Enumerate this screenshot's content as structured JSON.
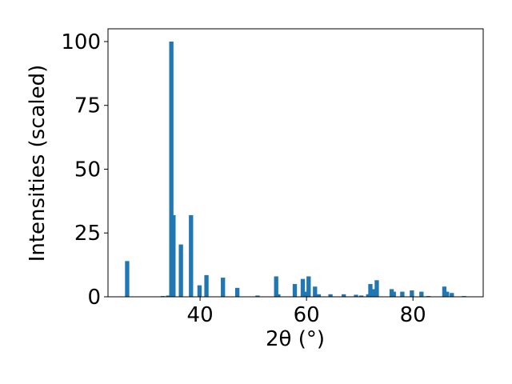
{
  "chart_data": {
    "type": "bar",
    "xlabel": "2θ (°)",
    "ylabel": "Intensities (scaled)",
    "color": "#1f77b4",
    "x": [
      26.3,
      33.0,
      34.0,
      34.6,
      35.0,
      36.4,
      38.3,
      39.9,
      41.2,
      44.3,
      47.0,
      50.8,
      54.3,
      54.7,
      57.8,
      59.3,
      60.0,
      60.4,
      61.6,
      62.3,
      64.5,
      67.0,
      69.3,
      70.3,
      71.6,
      72.0,
      72.7,
      73.2,
      76.0,
      76.4,
      78.0,
      79.8,
      81.6,
      82.9,
      85.9,
      86.4,
      87.3,
      89.6
    ],
    "values": [
      14,
      0.3,
      0.5,
      100,
      32,
      20.5,
      32,
      4.5,
      8.5,
      7.5,
      3.5,
      0.5,
      8,
      1,
      5,
      7,
      2,
      8,
      4,
      1,
      1,
      1,
      0.8,
      0.5,
      1,
      5,
      3,
      6.5,
      3,
      2,
      2,
      2.5,
      2,
      0.3,
      4,
      2,
      1.5,
      0.3
    ],
    "xlim": [
      22.7,
      93.2
    ],
    "ylim": [
      0,
      105
    ],
    "xticks": [
      40,
      60,
      80
    ],
    "yticks": [
      0,
      25,
      50,
      75,
      100
    ]
  }
}
